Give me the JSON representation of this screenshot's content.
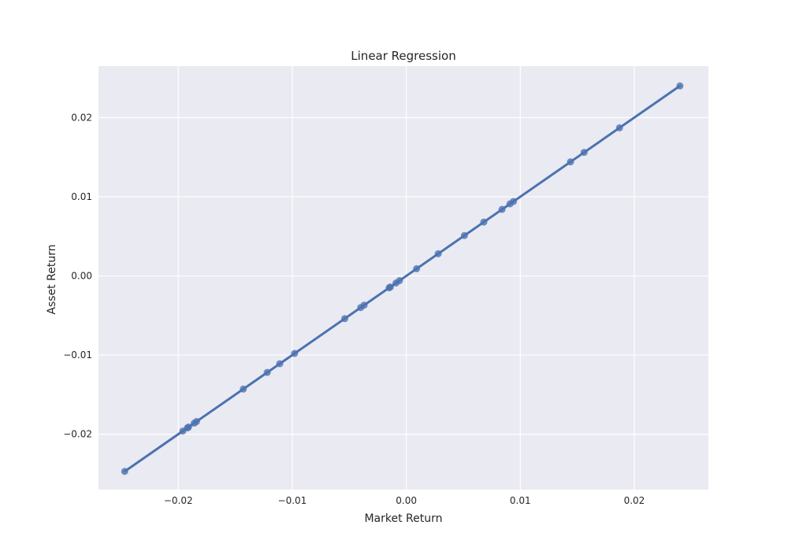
{
  "chart_data": {
    "type": "scatter",
    "title": "Linear Regression",
    "xlabel": "Market Return",
    "ylabel": "Asset Return",
    "xlim": [
      -0.027,
      0.0265
    ],
    "ylim": [
      -0.027,
      0.0265
    ],
    "x_ticks": [
      -0.02,
      -0.01,
      0.0,
      0.01,
      0.02
    ],
    "x_tick_labels": [
      "−0.02",
      "−0.01",
      "0.00",
      "0.01",
      "0.02"
    ],
    "y_ticks": [
      -0.02,
      -0.01,
      0.0,
      0.01,
      0.02
    ],
    "y_tick_labels": [
      "−0.02",
      "−0.01",
      "0.00",
      "0.01",
      "0.02"
    ],
    "grid": true,
    "colors": {
      "background": "#eaeaf2",
      "grid": "#ffffff",
      "series": "#4c72b0"
    },
    "points": {
      "x": [
        -0.0247,
        -0.0196,
        -0.0192,
        -0.0191,
        -0.0186,
        -0.0184,
        -0.0143,
        -0.0122,
        -0.0111,
        -0.0098,
        -0.0054,
        -0.004,
        -0.0037,
        -0.0015,
        -0.0014,
        -0.0009,
        -0.0006,
        0.0009,
        0.0028,
        0.0051,
        0.0068,
        0.0084,
        0.0091,
        0.0094,
        0.0144,
        0.0156,
        0.0187,
        0.024
      ],
      "y": [
        -0.0247,
        -0.0196,
        -0.0192,
        -0.0191,
        -0.0186,
        -0.0184,
        -0.0143,
        -0.0122,
        -0.0111,
        -0.0098,
        -0.0054,
        -0.004,
        -0.0037,
        -0.0015,
        -0.0014,
        -0.0009,
        -0.0006,
        0.0009,
        0.0028,
        0.0051,
        0.0068,
        0.0084,
        0.0091,
        0.0094,
        0.0144,
        0.0156,
        0.0187,
        0.024
      ]
    },
    "regression_line": {
      "x": [
        -0.0247,
        0.024
      ],
      "y": [
        -0.0247,
        0.024
      ]
    }
  }
}
